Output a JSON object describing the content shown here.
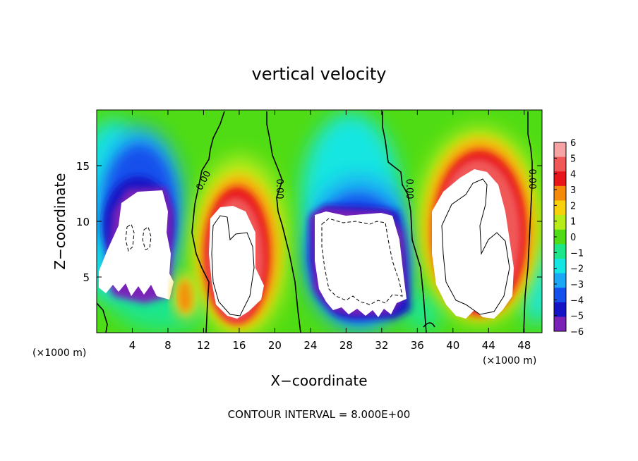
{
  "chart_data": {
    "type": "heatmap",
    "title": "vertical velocity",
    "xlabel": "X−coordinate",
    "ylabel": "Z−coordinate",
    "x_unit_left": "(×1000 m)",
    "x_unit_right": "(×1000 m)",
    "xlim": [
      0,
      50
    ],
    "ylim": [
      0,
      20
    ],
    "x_ticks": [
      4,
      8,
      12,
      16,
      20,
      24,
      28,
      32,
      36,
      40,
      44,
      48
    ],
    "y_ticks": [
      5,
      10,
      15
    ],
    "colorbar": {
      "ticks": [
        6,
        5,
        4,
        3,
        2,
        1,
        0,
        -1,
        -2,
        -3,
        -4,
        -5,
        -6
      ],
      "tick_labels": [
        "6",
        "5",
        "4",
        "3",
        "2",
        "1",
        "0",
        "−1",
        "−2",
        "−3",
        "−4",
        "−5",
        "−6"
      ],
      "colors": [
        "#f7a3a3",
        "#f05858",
        "#e8161a",
        "#f58a0a",
        "#f5d20a",
        "#b5ec1a",
        "#4fdc14",
        "#1ce68a",
        "#15e6e2",
        "#1aa7f5",
        "#1450ec",
        "#1414c4",
        "#7a22b8"
      ]
    },
    "regions": [
      {
        "sign": "negative",
        "x_center": 5,
        "z_center": 9,
        "x_width": 8,
        "z_height": 9,
        "peak": -6,
        "saturated": true
      },
      {
        "sign": "positive",
        "x_center": 10,
        "z_center": 3.5,
        "x_width": 1.5,
        "z_height": 3,
        "peak": 4
      },
      {
        "sign": "positive",
        "x_center": 16,
        "z_center": 8,
        "x_width": 7,
        "z_height": 14,
        "peak": 6,
        "saturated": true
      },
      {
        "sign": "negative",
        "x_center": 29,
        "z_center": 7,
        "x_width": 10,
        "z_height": 11,
        "peak": -6,
        "saturated": true
      },
      {
        "sign": "positive",
        "x_center": 42,
        "z_center": 9,
        "x_width": 10,
        "z_height": 15,
        "peak": 6,
        "saturated": true
      }
    ],
    "contour_labels": [
      "0.00",
      "0.00",
      "0.00",
      "0.00"
    ],
    "footer": "CONTOUR INTERVAL = 8.000E+00"
  }
}
